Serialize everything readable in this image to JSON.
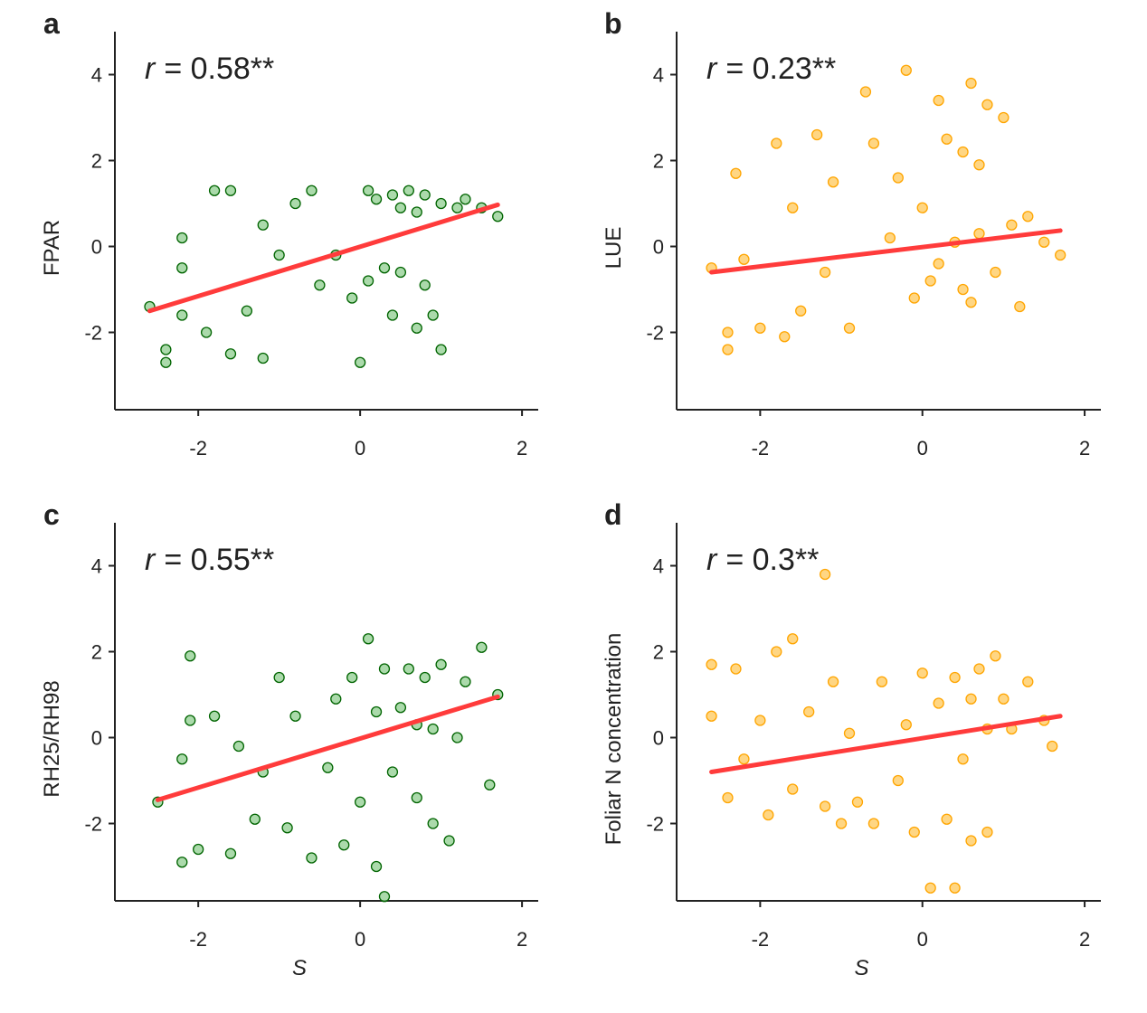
{
  "chart_data": [
    {
      "type": "scatter",
      "panel_label": "a",
      "ylabel": "FPAR",
      "color": "#006400",
      "fill": "#8fce8f",
      "annotation": {
        "var": "r",
        "text": "= 0.58**"
      },
      "xlim": [
        -3.03,
        2.2
      ],
      "ylim": [
        -3.8,
        5
      ],
      "xticks": [
        -2,
        0,
        2
      ],
      "yticks": [
        -2,
        0,
        2,
        4
      ],
      "x": [
        -2.6,
        -2.4,
        -2.4,
        -2.2,
        -2.2,
        -2.2,
        -1.9,
        -1.8,
        -1.6,
        -1.6,
        -1.4,
        -1.2,
        -1.2,
        -1.0,
        -0.8,
        -0.6,
        -0.5,
        -0.3,
        -0.1,
        0.0,
        0.1,
        0.1,
        0.2,
        0.3,
        0.4,
        0.4,
        0.5,
        0.5,
        0.6,
        0.7,
        0.7,
        0.8,
        0.8,
        0.9,
        1.0,
        1.0,
        1.2,
        1.3,
        1.5,
        1.7
      ],
      "values": [
        -1.4,
        -2.7,
        -2.4,
        0.2,
        -0.5,
        -1.6,
        -2.0,
        1.3,
        1.3,
        -2.5,
        -1.5,
        -2.6,
        0.5,
        -0.2,
        1.0,
        1.3,
        -0.9,
        -0.2,
        -1.2,
        -2.7,
        1.3,
        -0.8,
        1.1,
        -0.5,
        1.2,
        -1.6,
        0.9,
        -0.6,
        1.3,
        -1.9,
        0.8,
        1.2,
        -0.9,
        -1.6,
        1.0,
        -2.4,
        0.9,
        1.1,
        0.9,
        0.7
      ],
      "fit": {
        "color": "#ff3b3b",
        "x": [
          -2.6,
          1.7
        ],
        "y": [
          -1.5,
          0.97
        ]
      }
    },
    {
      "type": "scatter",
      "panel_label": "b",
      "ylabel": "LUE",
      "color": "#ffa500",
      "fill": "#ffc85a",
      "annotation": {
        "var": "r",
        "text": "= 0.23**"
      },
      "xlim": [
        -3.03,
        2.2
      ],
      "ylim": [
        -3.8,
        5
      ],
      "xticks": [
        -2,
        0,
        2
      ],
      "yticks": [
        -2,
        0,
        2,
        4
      ],
      "x": [
        -2.6,
        -2.4,
        -2.4,
        -2.3,
        -2.2,
        -2.0,
        -1.8,
        -1.7,
        -1.6,
        -1.5,
        -1.3,
        -1.2,
        -1.1,
        -0.9,
        -0.7,
        -0.6,
        -0.4,
        -0.3,
        -0.2,
        -0.1,
        0.0,
        0.1,
        0.2,
        0.3,
        0.4,
        0.5,
        0.5,
        0.6,
        0.6,
        0.7,
        0.7,
        0.8,
        0.9,
        1.0,
        1.1,
        1.2,
        1.3,
        1.5,
        1.7,
        0.2
      ],
      "values": [
        -0.5,
        -2.4,
        -2.0,
        1.7,
        -0.3,
        -1.9,
        2.4,
        -2.1,
        0.9,
        -1.5,
        2.6,
        -0.6,
        1.5,
        -1.9,
        3.6,
        2.4,
        0.2,
        1.6,
        4.1,
        -1.2,
        0.9,
        -0.8,
        3.4,
        2.5,
        0.1,
        -1.0,
        2.2,
        3.8,
        -1.3,
        1.9,
        0.3,
        3.3,
        -0.6,
        3.0,
        0.5,
        -1.4,
        0.7,
        0.1,
        -0.2,
        -0.4
      ],
      "fit": {
        "color": "#ff3b3b",
        "x": [
          -2.6,
          1.7
        ],
        "y": [
          -0.6,
          0.37
        ]
      }
    },
    {
      "type": "scatter",
      "panel_label": "c",
      "ylabel": "RH25/RH98",
      "xlabel": "S",
      "color": "#006400",
      "fill": "#8fce8f",
      "annotation": {
        "var": "r",
        "text": "= 0.55**"
      },
      "xlim": [
        -3.03,
        2.2
      ],
      "ylim": [
        -3.8,
        5
      ],
      "xticks": [
        -2,
        0,
        2
      ],
      "yticks": [
        -2,
        0,
        2,
        4
      ],
      "x": [
        -2.5,
        -2.2,
        -2.2,
        -2.1,
        -2.1,
        -2.0,
        -1.8,
        -1.6,
        -1.5,
        -1.3,
        -1.2,
        -1.0,
        -0.9,
        -0.8,
        -0.6,
        -0.4,
        -0.3,
        -0.2,
        -0.1,
        0.0,
        0.1,
        0.2,
        0.2,
        0.3,
        0.3,
        0.4,
        0.5,
        0.6,
        0.7,
        0.7,
        0.8,
        0.9,
        0.9,
        1.0,
        1.1,
        1.2,
        1.3,
        1.5,
        1.6,
        1.7
      ],
      "values": [
        -1.5,
        -2.9,
        -0.5,
        1.9,
        0.4,
        -2.6,
        0.5,
        -2.7,
        -0.2,
        -1.9,
        -0.8,
        1.4,
        -2.1,
        0.5,
        -2.8,
        -0.7,
        0.9,
        -2.5,
        1.4,
        -1.5,
        2.3,
        -3.0,
        0.6,
        -3.7,
        1.6,
        -0.8,
        0.7,
        1.6,
        -1.4,
        0.3,
        1.4,
        -2.0,
        0.2,
        1.7,
        -2.4,
        0.0,
        1.3,
        2.1,
        -1.1,
        1.0
      ],
      "fit": {
        "color": "#ff3b3b",
        "x": [
          -2.5,
          1.7
        ],
        "y": [
          -1.45,
          0.95
        ]
      }
    },
    {
      "type": "scatter",
      "panel_label": "d",
      "ylabel": "Foliar N concentration",
      "xlabel": "S",
      "color": "#ffa500",
      "fill": "#ffc85a",
      "annotation": {
        "var": "r",
        "text": "= 0.3**"
      },
      "xlim": [
        -3.03,
        2.2
      ],
      "ylim": [
        -3.8,
        5
      ],
      "xticks": [
        -2,
        0,
        2
      ],
      "yticks": [
        -2,
        0,
        2,
        4
      ],
      "x": [
        -2.6,
        -2.6,
        -2.4,
        -2.3,
        -2.2,
        -2.0,
        -1.9,
        -1.8,
        -1.6,
        -1.6,
        -1.4,
        -1.2,
        -1.2,
        -1.1,
        -1.0,
        -0.9,
        -0.8,
        -0.6,
        -0.5,
        -0.3,
        -0.2,
        -0.1,
        0.0,
        0.1,
        0.2,
        0.3,
        0.4,
        0.4,
        0.5,
        0.6,
        0.6,
        0.7,
        0.8,
        0.8,
        0.9,
        1.0,
        1.1,
        1.3,
        1.5,
        1.6
      ],
      "values": [
        1.7,
        0.5,
        -1.4,
        1.6,
        -0.5,
        0.4,
        -1.8,
        2.0,
        2.3,
        -1.2,
        0.6,
        3.8,
        -1.6,
        1.3,
        -2.0,
        0.1,
        -1.5,
        -2.0,
        1.3,
        -1.0,
        0.3,
        -2.2,
        1.5,
        -3.5,
        0.8,
        -1.9,
        1.4,
        -3.5,
        -0.5,
        0.9,
        -2.4,
        1.6,
        0.2,
        -2.2,
        1.9,
        0.9,
        0.2,
        1.3,
        0.4,
        -0.2
      ],
      "fit": {
        "color": "#ff3b3b",
        "x": [
          -2.6,
          1.7
        ],
        "y": [
          -0.8,
          0.5
        ]
      }
    }
  ]
}
